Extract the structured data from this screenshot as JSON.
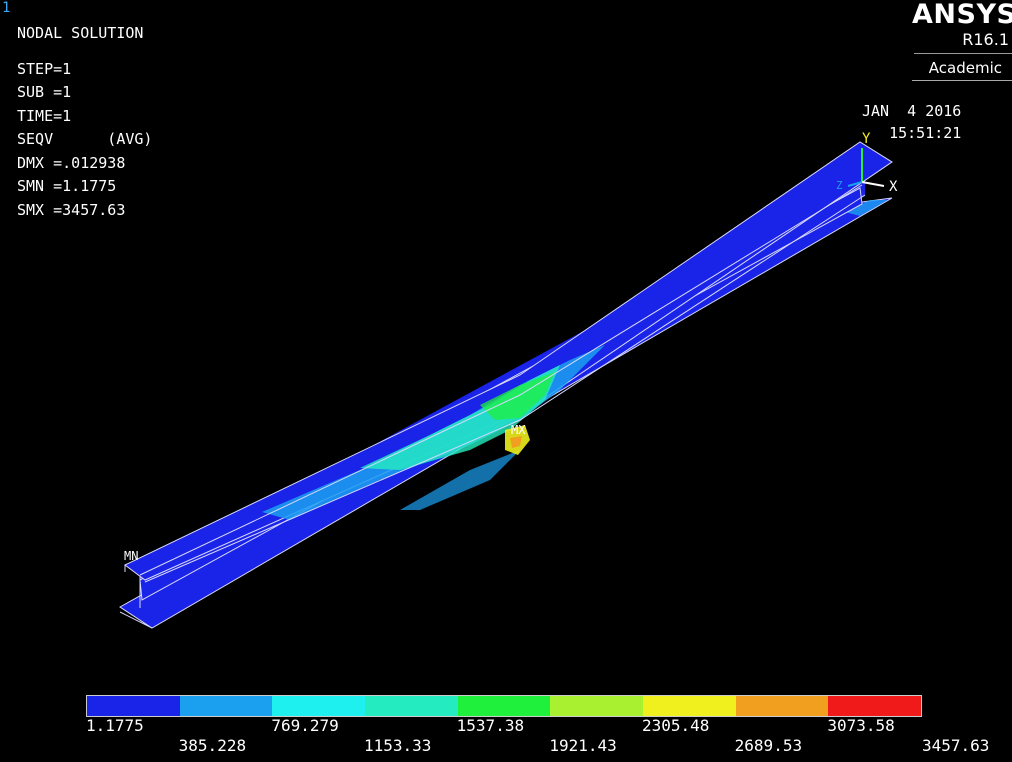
{
  "window_number": "1",
  "info": {
    "title": "NODAL SOLUTION",
    "step": "STEP=1",
    "sub": "SUB =1",
    "time": "TIME=1",
    "seqv": "SEQV      (AVG)",
    "dmx": "DMX =.012938",
    "smn": "SMN =1.1775",
    "smx": "SMX =3457.63"
  },
  "logo": {
    "name": "ANSYS",
    "version": "R16.1",
    "tag": "Academic"
  },
  "datetime": {
    "date": "JAN  4 2016",
    "time": "15:51:21"
  },
  "markers": {
    "min": "MN",
    "max": "MX"
  },
  "triad": {
    "y": "Y",
    "x": "X",
    "z": "Z"
  },
  "legend": {
    "colors": [
      "#1a23e8",
      "#1ba0f0",
      "#1ef0f0",
      "#24ecc0",
      "#1ef03c",
      "#a8f030",
      "#f0f01e",
      "#f0a01e",
      "#f01a1a"
    ],
    "top_labels": [
      "1.1775",
      "769.279",
      "1537.38",
      "2305.48",
      "3073.58"
    ],
    "bottom_labels": [
      "385.228",
      "1153.33",
      "1921.43",
      "2689.53",
      "3457.63"
    ]
  }
}
